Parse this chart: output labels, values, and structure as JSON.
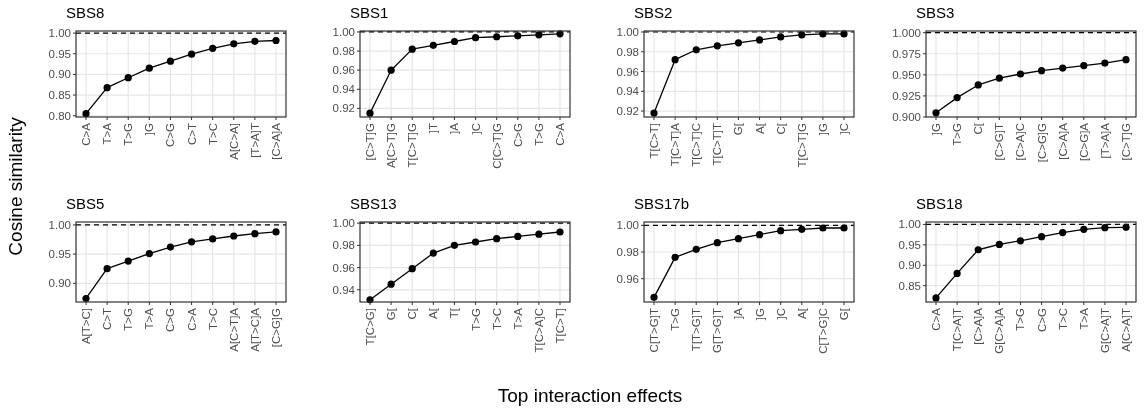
{
  "chart_data": [
    {
      "type": "line",
      "title": "SBS8",
      "ylabel": "Cosine similarity",
      "categories": [
        "C>A",
        "T>A",
        "T>G",
        "]G",
        "C>G",
        "C>T",
        "T>C",
        "A[C>A]",
        "[T>A]T",
        "[C>A]A"
      ],
      "series": [
        {
          "color": "#000000",
          "values": [
            0.805,
            0.868,
            0.892,
            0.915,
            0.932,
            0.949,
            0.963,
            0.974,
            0.98,
            0.982
          ]
        }
      ],
      "ylim": [
        0.797,
        1.005
      ],
      "yticks": [
        {
          "value": 0.8,
          "label": "0.80"
        },
        {
          "value": 0.85,
          "label": "0.85"
        },
        {
          "value": 0.9,
          "label": "0.90"
        },
        {
          "value": 0.95,
          "label": "0.95"
        },
        {
          "value": 1,
          "label": "1.00"
        }
      ],
      "ref_lines": [
        {
          "axis": "y",
          "value": 1,
          "line_style": "dashed"
        }
      ],
      "grid": true,
      "marker": "circle"
    },
    {
      "type": "line",
      "title": "SBS1",
      "categories": [
        "[C>T]G",
        "A[C>T]G",
        "T[C>T]G",
        "]T",
        "]A",
        "]C",
        "C[C>T]G",
        "C>G",
        "T>G",
        "C>A"
      ],
      "series": [
        {
          "color": "#000000",
          "values": [
            0.915,
            0.96,
            0.982,
            0.986,
            0.99,
            0.994,
            0.995,
            0.996,
            0.997,
            0.998
          ]
        }
      ],
      "ylim": [
        0.911,
        1.001
      ],
      "yticks": [
        {
          "value": 0.92,
          "label": "0.92"
        },
        {
          "value": 0.94,
          "label": "0.94"
        },
        {
          "value": 0.96,
          "label": "0.96"
        },
        {
          "value": 0.98,
          "label": "0.98"
        },
        {
          "value": 1,
          "label": "1.00"
        }
      ],
      "ref_lines": [
        {
          "axis": "y",
          "value": 1,
          "line_style": "dashed"
        }
      ],
      "grid": true,
      "marker": "circle"
    },
    {
      "type": "line",
      "title": "SBS2",
      "categories": [
        "T[C>T]",
        "T[C>T]A",
        "T[C>T]C",
        "T[C>T]T",
        "G[",
        "A[",
        "C[",
        "T[C>T]G",
        "]G",
        "]C"
      ],
      "series": [
        {
          "color": "#000000",
          "values": [
            0.918,
            0.972,
            0.982,
            0.986,
            0.989,
            0.992,
            0.995,
            0.997,
            0.998,
            0.998
          ]
        }
      ],
      "ylim": [
        0.914,
        1.001
      ],
      "yticks": [
        {
          "value": 0.92,
          "label": "0.92"
        },
        {
          "value": 0.94,
          "label": "0.94"
        },
        {
          "value": 0.96,
          "label": "0.96"
        },
        {
          "value": 0.98,
          "label": "0.98"
        },
        {
          "value": 1,
          "label": "1.00"
        }
      ],
      "ref_lines": [
        {
          "axis": "y",
          "value": 1,
          "line_style": "dashed"
        }
      ],
      "grid": true,
      "marker": "circle"
    },
    {
      "type": "line",
      "title": "SBS3",
      "categories": [
        "]G",
        "T>G",
        "C[",
        "[C>G]T",
        "[C>A]C",
        "[C>G]G",
        "[C>A]A",
        "[C>G]A",
        "[T>A]A",
        "[C>T]G"
      ],
      "series": [
        {
          "color": "#000000",
          "values": [
            0.905,
            0.923,
            0.938,
            0.946,
            0.951,
            0.955,
            0.958,
            0.961,
            0.964,
            0.968
          ]
        }
      ],
      "ylim": [
        0.9,
        1.002
      ],
      "yticks": [
        {
          "value": 0.9,
          "label": "0.900"
        },
        {
          "value": 0.925,
          "label": "0.925"
        },
        {
          "value": 0.95,
          "label": "0.950"
        },
        {
          "value": 0.975,
          "label": "0.975"
        },
        {
          "value": 1,
          "label": "1.000"
        }
      ],
      "ref_lines": [
        {
          "axis": "y",
          "value": 1,
          "line_style": "dashed"
        }
      ],
      "grid": true,
      "marker": "circle"
    },
    {
      "type": "line",
      "title": "SBS5",
      "categories": [
        "A[T>C]",
        "C>T",
        "T>G",
        "T>A",
        "C>G",
        "C>A",
        "T>C",
        "A[C>T]A",
        "A[T>C]A",
        "[C>G]G"
      ],
      "series": [
        {
          "color": "#000000",
          "values": [
            0.874,
            0.925,
            0.938,
            0.951,
            0.962,
            0.971,
            0.976,
            0.981,
            0.985,
            0.988
          ]
        }
      ],
      "ylim": [
        0.868,
        1.005
      ],
      "yticks": [
        {
          "value": 0.9,
          "label": "0.90"
        },
        {
          "value": 0.95,
          "label": "0.95"
        },
        {
          "value": 1,
          "label": "1.00"
        }
      ],
      "ref_lines": [
        {
          "axis": "y",
          "value": 1,
          "line_style": "dashed"
        }
      ],
      "grid": true,
      "marker": "circle"
    },
    {
      "type": "line",
      "title": "SBS13",
      "annotations": [
        "Top interaction effects"
      ],
      "categories": [
        "T[C>G]",
        "G[",
        "C[",
        "A[",
        "T[",
        "T>G",
        "T>C",
        "T>A",
        "T[C>A]C",
        "T[C>T]"
      ],
      "series": [
        {
          "color": "#000000",
          "values": [
            0.931,
            0.945,
            0.959,
            0.973,
            0.98,
            0.983,
            0.986,
            0.988,
            0.99,
            0.992
          ]
        }
      ],
      "ylim": [
        0.929,
        1.001
      ],
      "yticks": [
        {
          "value": 0.94,
          "label": "0.94"
        },
        {
          "value": 0.96,
          "label": "0.96"
        },
        {
          "value": 0.98,
          "label": "0.98"
        },
        {
          "value": 1,
          "label": "1.00"
        }
      ],
      "ref_lines": [
        {
          "axis": "y",
          "value": 1,
          "line_style": "dashed"
        }
      ],
      "grid": true,
      "marker": "circle"
    },
    {
      "type": "line",
      "title": "SBS17b",
      "categories": [
        "C[T>G]T",
        "T>G",
        "T[T>G]T",
        "G[T>G]T",
        "]A",
        "]G",
        "]C",
        "A[",
        "C[T>G]C",
        "G["
      ],
      "series": [
        {
          "color": "#000000",
          "values": [
            0.946,
            0.976,
            0.982,
            0.987,
            0.99,
            0.993,
            0.996,
            0.997,
            0.998,
            0.998
          ]
        }
      ],
      "ylim": [
        0.9425,
        1.0025
      ],
      "yticks": [
        {
          "value": 0.96,
          "label": "0.96"
        },
        {
          "value": 0.98,
          "label": "0.98"
        },
        {
          "value": 1,
          "label": "1.00"
        }
      ],
      "ref_lines": [
        {
          "axis": "y",
          "value": 1,
          "line_style": "dashed"
        }
      ],
      "grid": true,
      "marker": "circle"
    },
    {
      "type": "line",
      "title": "SBS18",
      "categories": [
        "C>A",
        "T[C>A]T",
        "[C>A]A",
        "G[C>A]A",
        "T>G",
        "C>G",
        "T>C",
        "T>A",
        "G[C>A]T",
        "A[C>A]T"
      ],
      "series": [
        {
          "color": "#000000",
          "values": [
            0.82,
            0.88,
            0.938,
            0.951,
            0.96,
            0.97,
            0.98,
            0.988,
            0.992,
            0.993
          ]
        }
      ],
      "ylim": [
        0.81,
        1.006
      ],
      "yticks": [
        {
          "value": 0.85,
          "label": "0.85"
        },
        {
          "value": 0.9,
          "label": "0.90"
        },
        {
          "value": 0.95,
          "label": "0.95"
        },
        {
          "value": 1,
          "label": "1.00"
        }
      ],
      "ref_lines": [
        {
          "axis": "y",
          "value": 1,
          "line_style": "dashed"
        }
      ],
      "grid": true,
      "marker": "circle"
    }
  ]
}
